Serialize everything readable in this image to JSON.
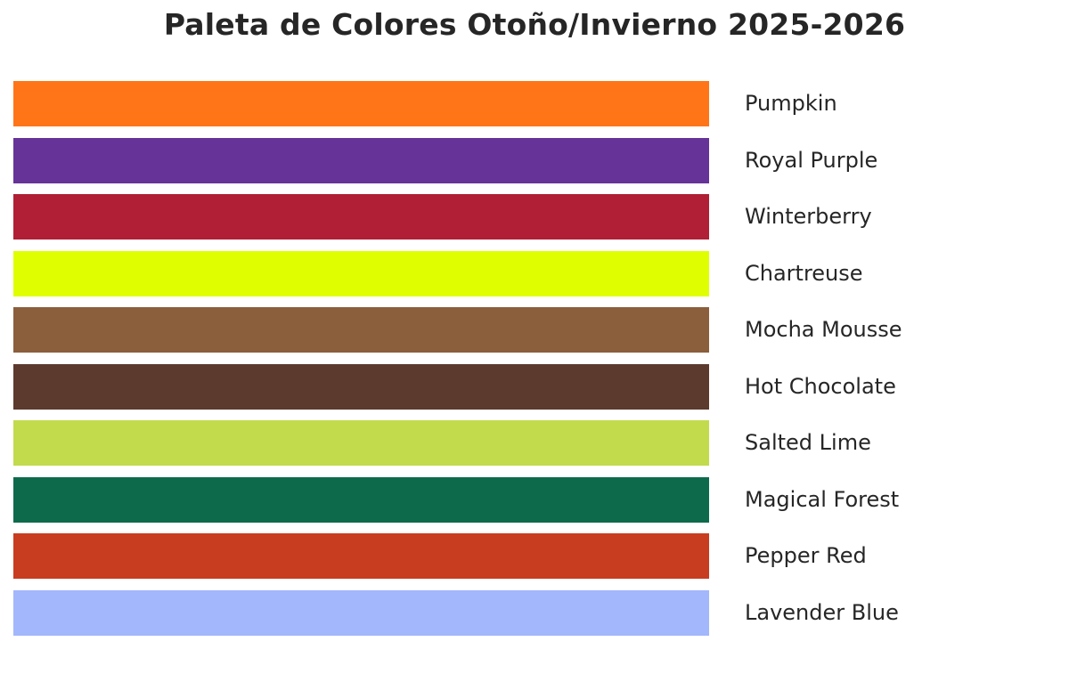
{
  "chart_data": {
    "type": "bar",
    "title": "Paleta de Colores Otoño/Invierno 2025-2026",
    "categories": [
      "Pumpkin",
      "Royal Purple",
      "Winterberry",
      "Chartreuse",
      "Mocha Mousse",
      "Hot Chocolate",
      "Salted Lime",
      "Magical Forest",
      "Pepper Red",
      "Lavender Blue"
    ],
    "colors": [
      "#FF7518",
      "#663399",
      "#B01F35",
      "#DFFF00",
      "#8B5E3C",
      "#5C3A2E",
      "#C2DB4D",
      "#0D6B4C",
      "#C83C20",
      "#A2B7FC"
    ],
    "values": [
      1,
      1,
      1,
      1,
      1,
      1,
      1,
      1,
      1,
      1
    ],
    "xlabel": "",
    "ylabel": "",
    "grid": false,
    "legend": "labels to the right of each bar"
  }
}
